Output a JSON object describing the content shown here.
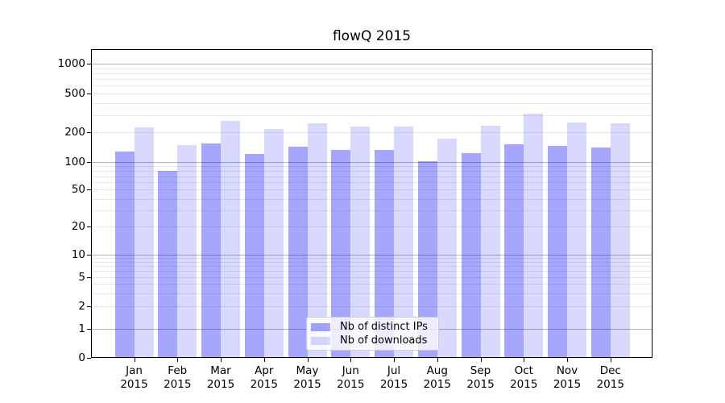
{
  "chart_data": {
    "type": "bar",
    "title": "flowQ 2015",
    "categories": [
      "Jan",
      "Feb",
      "Mar",
      "Apr",
      "May",
      "Jun",
      "Jul",
      "Aug",
      "Sep",
      "Oct",
      "Nov",
      "Dec"
    ],
    "year": "2015",
    "series": [
      {
        "name": "Nb of distinct IPs",
        "color": "rgba(0,0,250,0.35)",
        "values": [
          128,
          80,
          155,
          120,
          142,
          131,
          131,
          101,
          123,
          151,
          146,
          140
        ]
      },
      {
        "name": "Nb of downloads",
        "color": "rgba(0,0,250,0.15)",
        "values": [
          226,
          148,
          262,
          217,
          245,
          227,
          227,
          172,
          234,
          310,
          250,
          249
        ]
      }
    ],
    "yscale": "symlog",
    "ylim": [
      0,
      1380
    ],
    "ytick_labels": [
      0,
      1,
      2,
      5,
      10,
      20,
      50,
      100,
      200,
      500,
      1000
    ],
    "grid": {
      "major_values": [
        1,
        10,
        100,
        1000
      ],
      "minor_decades": [
        1,
        10,
        100
      ],
      "major_color": "#b3b3b3",
      "minor_color": "#e9e9e9"
    },
    "legend_position": "lower center",
    "axis_color": "#000000",
    "background_color": "#ffffff"
  }
}
